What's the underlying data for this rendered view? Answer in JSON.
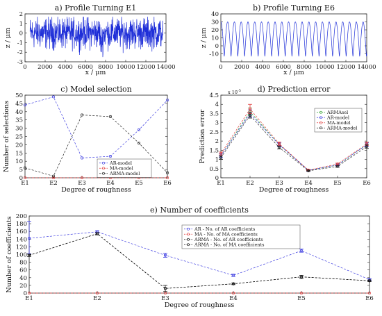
{
  "chart_data": [
    {
      "id": "a",
      "type": "line",
      "title": "a) Profile Turning E1",
      "xlabel": "x / μm",
      "ylabel": "z / μm",
      "xlim": [
        0,
        14000
      ],
      "ylim": [
        -3,
        2
      ],
      "xticks": [
        0,
        2000,
        4000,
        6000,
        8000,
        10000,
        12000,
        14000
      ],
      "yticks": [
        -3,
        -2,
        -1,
        0,
        1,
        2
      ],
      "description": "noisy",
      "series": [
        {
          "color": "#1f2fd8"
        }
      ]
    },
    {
      "id": "b",
      "type": "line",
      "title": "b) Profile Turning E6",
      "xlabel": "x / μm",
      "ylabel": "z / μm",
      "xlim": [
        0,
        14000
      ],
      "ylim": [
        -20,
        40
      ],
      "xticks": [
        0,
        2000,
        4000,
        6000,
        8000,
        10000,
        12000,
        14000
      ],
      "yticks": [
        -10,
        0,
        10,
        20,
        30,
        40
      ],
      "periodic": {
        "period_um": 650,
        "min": -14,
        "max": 30
      },
      "series": [
        {
          "color": "#1f2fd8"
        }
      ]
    },
    {
      "id": "c",
      "type": "line",
      "title": "c) Model selection",
      "xlabel": "Degree of roughness",
      "ylabel": "Number of selections",
      "categories": [
        "E1",
        "E2",
        "E3",
        "E4",
        "E5",
        "E6"
      ],
      "ylim": [
        0,
        50
      ],
      "yticks": [
        0,
        5,
        10,
        15,
        20,
        25,
        30,
        35,
        40,
        45,
        50
      ],
      "legend_position": "lower-right",
      "series": [
        {
          "name": "AR-model",
          "color": "#3a3ae0",
          "values": [
            44,
            49,
            12,
            13,
            29,
            47
          ]
        },
        {
          "name": "MA-model",
          "color": "#e03a3a",
          "values": [
            0,
            0,
            0,
            0,
            0,
            0
          ]
        },
        {
          "name": "ARMA-model",
          "color": "#222222",
          "values": [
            6,
            1,
            38,
            37,
            21,
            3
          ]
        }
      ]
    },
    {
      "id": "d",
      "type": "line",
      "title": "d) Prediction error",
      "xlabel": "Degree of roughness",
      "ylabel": "Prediction error",
      "exponent_label": "x 10",
      "exponent_power": "-5",
      "categories": [
        "E1",
        "E2",
        "E3",
        "E4",
        "E5",
        "E6"
      ],
      "ylim": [
        0,
        4.5
      ],
      "yticks": [
        0,
        0.5,
        1,
        1.5,
        2,
        2.5,
        3,
        3.5,
        4,
        4.5
      ],
      "legend_position": "upper-right",
      "series": [
        {
          "name": "ARMAsel",
          "color": "#2ca02c",
          "values": [
            1.2,
            3.6,
            1.8,
            0.4,
            0.7,
            1.8
          ],
          "err": [
            0.1,
            0.2,
            0.1,
            0.03,
            0.05,
            0.1
          ]
        },
        {
          "name": "AR-model",
          "color": "#3a3ae0",
          "values": [
            1.2,
            3.5,
            1.8,
            0.4,
            0.7,
            1.8
          ],
          "err": [
            0.1,
            0.2,
            0.1,
            0.03,
            0.05,
            0.1
          ]
        },
        {
          "name": "MA-model",
          "color": "#e03a3a",
          "values": [
            1.3,
            3.75,
            1.85,
            0.42,
            0.75,
            1.85
          ],
          "err": [
            0.1,
            0.25,
            0.1,
            0.03,
            0.05,
            0.1
          ]
        },
        {
          "name": "ARMA-model",
          "color": "#222222",
          "values": [
            1.1,
            3.4,
            1.65,
            0.38,
            0.62,
            1.7
          ],
          "err": [
            0.1,
            0.15,
            0.08,
            0.03,
            0.05,
            0.1
          ]
        }
      ]
    },
    {
      "id": "e",
      "type": "line",
      "title": "e) Number of coefficients",
      "xlabel": "Degree of roughness",
      "ylabel": "Number of coefficients",
      "categories": [
        "E1",
        "E2",
        "E3",
        "E4",
        "E5",
        "E6"
      ],
      "ylim": [
        0,
        200
      ],
      "yticks": [
        0,
        20,
        40,
        60,
        80,
        100,
        120,
        140,
        160,
        180,
        200
      ],
      "legend_position": "upper-right",
      "series": [
        {
          "name": "AR - No. of AR coefficients",
          "color": "#3a3ae0",
          "values": [
            142,
            159,
            98,
            46,
            110,
            35
          ],
          "err_low": [
            40,
            3,
            5,
            3,
            4,
            2
          ],
          "err_high": [
            44,
            3,
            5,
            3,
            4,
            2
          ]
        },
        {
          "name": "MA - No. of MA coefficients",
          "color": "#e03a3a",
          "values": [
            0,
            0,
            0,
            0,
            0,
            0
          ]
        },
        {
          "name": "ARMA - No. of AR coefficients",
          "color": "#111111",
          "values": [
            98,
            154,
            12,
            24,
            42,
            32
          ],
          "err_low": [
            3,
            3,
            8,
            2,
            4,
            2
          ],
          "err_high": [
            3,
            3,
            8,
            2,
            4,
            2
          ]
        },
        {
          "name": "ARMA - No. of MA coefficients",
          "color": "#111111",
          "values": [
            98,
            154,
            12,
            24,
            42,
            32
          ]
        }
      ]
    }
  ]
}
